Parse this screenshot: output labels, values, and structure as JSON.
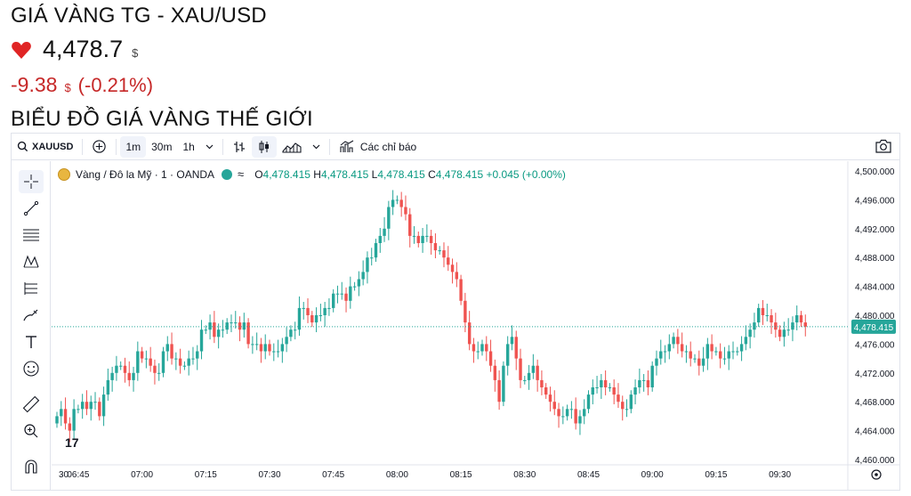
{
  "page": {
    "title": "GIÁ VÀNG TG - XAU/USD",
    "price": "4,478.7",
    "price_currency": "$",
    "change": "-9.38",
    "change_currency": "$",
    "change_percent": "(-0.21%)",
    "section_title": "BIỂU ĐỒ GIÁ VÀNG THẾ GIỚI"
  },
  "toolbar": {
    "symbol": "XAUUSD",
    "intervals": [
      "1m",
      "30m",
      "1h"
    ],
    "active_interval": "1m",
    "indicators_label": "Các chỉ báo"
  },
  "legend": {
    "name": "Vàng / Đô la Mỹ · 1 · OANDA",
    "open_label": "O",
    "open": "4,478.415",
    "high_label": "H",
    "high": "4,478.415",
    "low_label": "L",
    "low": "4,478.415",
    "close_label": "C",
    "close": "4,478.415",
    "change": "+0.045 (+0.00%)"
  },
  "sidebar_tools": [
    "crosshair-icon",
    "trend-line-icon",
    "fib-lines-icon",
    "pattern-icon",
    "measure-lines-icon",
    "brush-icon",
    "text-icon",
    "emoji-icon",
    "ruler-icon",
    "zoom-in-icon",
    "magnet-icon"
  ],
  "colors": {
    "up": "#26a69a",
    "down": "#ef5350",
    "accent_red": "#c62828",
    "price_badge": "#26a69a"
  },
  "chart_data": {
    "type": "candlestick",
    "title": "",
    "current_price": "4,478.415",
    "y_axis_labels": [
      "4,500.000",
      "4,496.000",
      "4,492.000",
      "4,488.000",
      "4,484.000",
      "4,480.000",
      "4,476.000",
      "4,472.000",
      "4,468.000",
      "4,464.000",
      "4,460.000"
    ],
    "x_axis_labels": [
      "30",
      "06:45",
      "07:00",
      "07:15",
      "07:30",
      "07:45",
      "08:00",
      "08:15",
      "08:30",
      "08:45",
      "09:00",
      "09:15",
      "09:30"
    ],
    "ylim": [
      4460,
      4500
    ],
    "x_start_minute": 30,
    "closes": [
      4466,
      4467,
      4465,
      4464,
      4467,
      4467,
      4468,
      4467,
      4468,
      4468,
      4466,
      4469,
      4471,
      4472,
      4473,
      4473,
      4472,
      4471,
      4472,
      4475,
      4474,
      4474,
      4473,
      4472,
      4472,
      4475,
      4476,
      4474,
      4474,
      4473,
      4473,
      4474,
      4474,
      4475,
      4478,
      4478,
      4479,
      4477,
      4478,
      4478,
      4479,
      4479,
      4479,
      4478,
      4479,
      4476,
      4476,
      4476,
      4475,
      4476,
      4475,
      4475,
      4475,
      4476,
      4477,
      4478,
      4478,
      4481,
      4481,
      4480,
      4479,
      4480,
      4480,
      4481,
      4481,
      4483,
      4483,
      4483,
      4482,
      4484,
      4484,
      4485,
      4486,
      4488,
      4488,
      4490,
      4491,
      4492,
      4495,
      4496,
      4496,
      4495,
      4494,
      4491,
      4491,
      4490,
      4491,
      4491,
      4490,
      4489,
      4489,
      4488,
      4487,
      4486,
      4485,
      4482,
      4479,
      4476,
      4475,
      4475,
      4476,
      4475,
      4473,
      4471,
      4468,
      4473,
      4476,
      4477,
      4474,
      4471,
      4471,
      4472,
      4473,
      4471,
      4470,
      4469,
      4468,
      4467,
      4466,
      4466,
      4467,
      4467,
      4465,
      4466,
      4467,
      4469,
      4470,
      4470,
      4471,
      4470,
      4470,
      4469,
      4468,
      4467,
      4467,
      4469,
      4470,
      4471,
      4471,
      4470,
      4473,
      4474,
      4475,
      4475,
      4476,
      4477,
      4476,
      4475,
      4475,
      4474,
      4474,
      4473,
      4474,
      4476,
      4475,
      4475,
      4474,
      4474,
      4475,
      4475,
      4475,
      4476,
      4477,
      4478,
      4479,
      4481,
      4480,
      4480,
      4479,
      4478,
      4477,
      4478,
      4478,
      4479,
      4480,
      4479,
      4478.415
    ],
    "opens": [
      4465,
      4466,
      4467,
      4465,
      4464,
      4467,
      4467,
      4468,
      4467,
      4468,
      4468,
      4466,
      4469,
      4471,
      4472,
      4473,
      4473,
      4472,
      4471,
      4472,
      4475,
      4474,
      4474,
      4473,
      4472,
      4472,
      4475,
      4476,
      4474,
      4474,
      4473,
      4473,
      4474,
      4474,
      4475,
      4478,
      4478,
      4479,
      4477,
      4478,
      4478,
      4479,
      4479,
      4479,
      4478,
      4479,
      4476,
      4476,
      4476,
      4475,
      4476,
      4475,
      4475,
      4475,
      4476,
      4477,
      4478,
      4478,
      4481,
      4481,
      4480,
      4479,
      4480,
      4480,
      4481,
      4481,
      4483,
      4483,
      4483,
      4482,
      4484,
      4484,
      4485,
      4486,
      4488,
      4488,
      4490,
      4491,
      4492,
      4495,
      4496,
      4496,
      4495,
      4494,
      4491,
      4491,
      4490,
      4491,
      4491,
      4490,
      4489,
      4489,
      4488,
      4487,
      4486,
      4485,
      4482,
      4479,
      4476,
      4475,
      4475,
      4476,
      4475,
      4473,
      4471,
      4468,
      4473,
      4476,
      4477,
      4474,
      4471,
      4471,
      4472,
      4473,
      4471,
      4470,
      4469,
      4468,
      4467,
      4466,
      4466,
      4467,
      4467,
      4465,
      4466,
      4467,
      4469,
      4470,
      4470,
      4471,
      4470,
      4470,
      4469,
      4468,
      4467,
      4467,
      4469,
      4470,
      4471,
      4471,
      4470,
      4473,
      4474,
      4475,
      4475,
      4476,
      4477,
      4476,
      4475,
      4475,
      4474,
      4474,
      4473,
      4474,
      4476,
      4475,
      4475,
      4474,
      4474,
      4475,
      4475,
      4475,
      4476,
      4477,
      4478,
      4479,
      4481,
      4480,
      4480,
      4479,
      4478,
      4477,
      4478,
      4478,
      4479,
      4480,
      4479
    ]
  }
}
